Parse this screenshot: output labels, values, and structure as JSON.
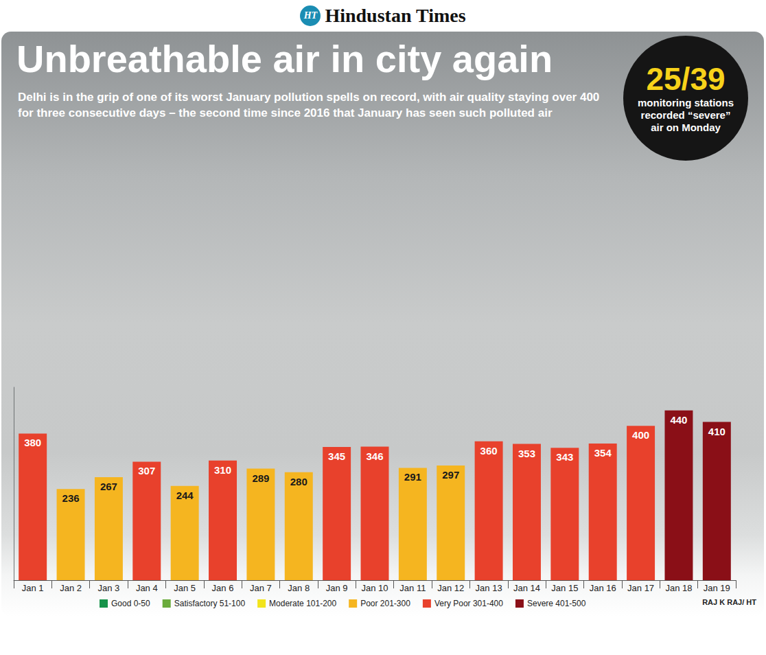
{
  "chart_data": {
    "type": "bar",
    "masthead": "Hindustan Times",
    "logo": "HT",
    "title": "Unbreathable air in city again",
    "subtitle": "Delhi is in the grip of one of its worst January pollution spells on record, with air quality staying over 400 for three consecutive days – the second time since 2016 that January has seen such polluted air",
    "annotation": {
      "headline": "25/39",
      "text": "monitoring stations recorded “severe” air on Monday"
    },
    "credit": "RAJ K RAJ/ HT",
    "categories": [
      "Jan 1",
      "Jan 2",
      "Jan 3",
      "Jan 4",
      "Jan 5",
      "Jan 6",
      "Jan 7",
      "Jan 8",
      "Jan 9",
      "Jan 10",
      "Jan 11",
      "Jan 12",
      "Jan 13",
      "Jan 14",
      "Jan 15",
      "Jan 16",
      "Jan 17",
      "Jan 18",
      "Jan 19"
    ],
    "series": [
      {
        "name": "Good 0-50",
        "color": "#17934a",
        "values": [
          null,
          null,
          null,
          null,
          null,
          null,
          null,
          null,
          null,
          null,
          null,
          null,
          null,
          null,
          null,
          null,
          null,
          null,
          null
        ]
      },
      {
        "name": "Satisfactory 51-100",
        "color": "#6aab3c",
        "values": [
          null,
          null,
          null,
          null,
          null,
          null,
          null,
          null,
          null,
          null,
          null,
          null,
          null,
          null,
          null,
          null,
          null,
          null,
          null
        ]
      },
      {
        "name": "Moderate 101-200",
        "color": "#f2e41c",
        "values": [
          null,
          null,
          null,
          null,
          null,
          null,
          null,
          null,
          null,
          null,
          null,
          null,
          null,
          null,
          null,
          null,
          null,
          null,
          null
        ]
      },
      {
        "name": "Poor 201-300",
        "color": "#f5b520",
        "values": [
          null,
          236,
          267,
          null,
          244,
          null,
          289,
          280,
          null,
          null,
          291,
          297,
          null,
          null,
          null,
          null,
          null,
          null,
          null
        ]
      },
      {
        "name": "Very Poor 301-400",
        "color": "#e8412c",
        "values": [
          380,
          null,
          null,
          307,
          null,
          310,
          null,
          null,
          345,
          346,
          null,
          null,
          360,
          353,
          343,
          354,
          400,
          null,
          null
        ]
      },
      {
        "name": "Severe 401-500",
        "color": "#8a0f17",
        "values": [
          null,
          null,
          null,
          null,
          null,
          null,
          null,
          null,
          null,
          null,
          null,
          null,
          null,
          null,
          null,
          null,
          null,
          440,
          410
        ]
      }
    ],
    "ylim": [
      0,
      500
    ],
    "tick_labels": "x",
    "grid": false,
    "data_labels": true,
    "legend": "bottom"
  }
}
